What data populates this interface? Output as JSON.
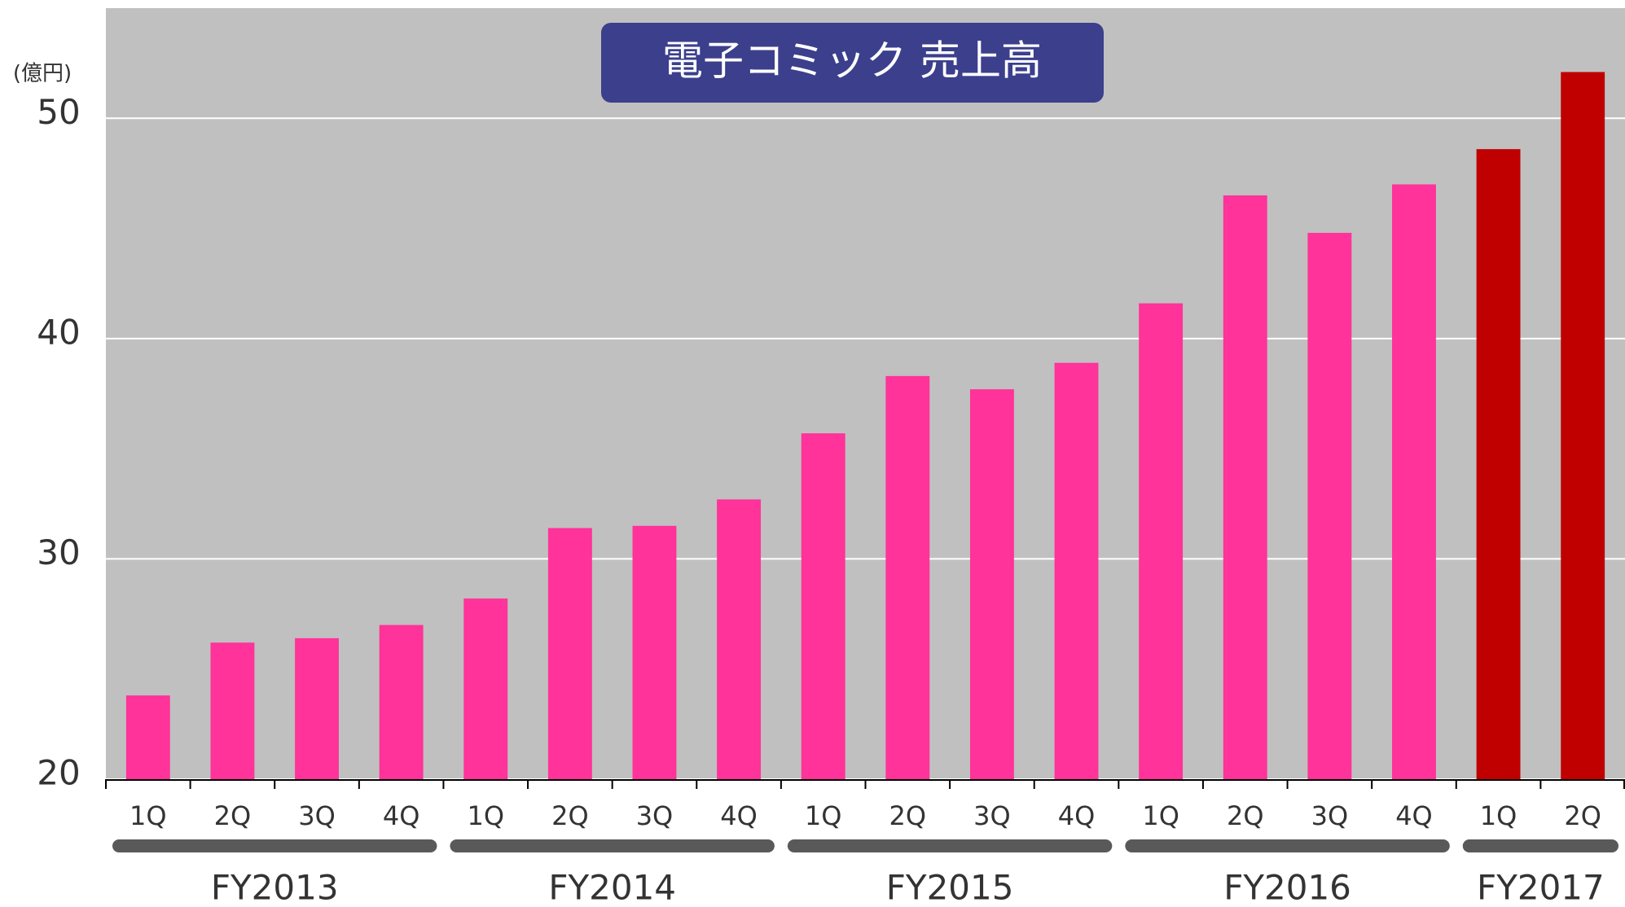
{
  "chart_data": {
    "type": "bar",
    "title": "電子コミック 売上高",
    "y_unit": "(億円)",
    "groups": [
      {
        "name": "FY2013",
        "categories": [
          "1Q",
          "2Q",
          "3Q",
          "4Q"
        ],
        "values": [
          23.8,
          26.2,
          26.4,
          27.0
        ],
        "color": "#ff3399"
      },
      {
        "name": "FY2014",
        "categories": [
          "1Q",
          "2Q",
          "3Q",
          "4Q"
        ],
        "values": [
          28.2,
          31.4,
          31.5,
          32.7
        ],
        "color": "#ff3399"
      },
      {
        "name": "FY2015",
        "categories": [
          "1Q",
          "2Q",
          "3Q",
          "4Q"
        ],
        "values": [
          35.7,
          38.3,
          37.7,
          38.9
        ],
        "color": "#ff3399"
      },
      {
        "name": "FY2016",
        "categories": [
          "1Q",
          "2Q",
          "3Q",
          "4Q"
        ],
        "values": [
          41.6,
          46.5,
          44.8,
          47.0
        ],
        "color": "#ff3399"
      },
      {
        "name": "FY2017",
        "categories": [
          "1Q",
          "2Q"
        ],
        "values": [
          48.6,
          52.1
        ],
        "color": "#c00000"
      }
    ],
    "ylim": [
      20,
      55
    ],
    "yticks": [
      20,
      30,
      40,
      50
    ],
    "grid": true,
    "grid_color": "#ffffff",
    "background": "#c0c0c0"
  }
}
